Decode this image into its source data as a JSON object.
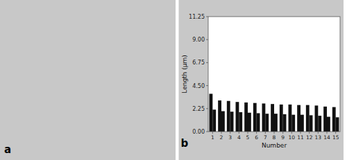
{
  "chart_data": {
    "type": "bar",
    "xlabel": "Number",
    "ylabel": "Length (μm)",
    "categories": [
      "1",
      "2",
      "3",
      "4",
      "5",
      "6",
      "7",
      "8",
      "9",
      "10",
      "11",
      "12",
      "13",
      "14",
      "15"
    ],
    "series": [
      {
        "color": "#111111",
        "values": [
          3.7,
          3.05,
          3.0,
          2.9,
          2.85,
          2.8,
          2.75,
          2.7,
          2.65,
          2.65,
          2.6,
          2.6,
          2.55,
          2.45,
          2.4
        ]
      },
      {
        "color": "#111111",
        "values": [
          2.15,
          2.0,
          1.95,
          1.9,
          1.85,
          1.8,
          1.75,
          1.75,
          1.7,
          1.65,
          1.65,
          1.6,
          1.55,
          1.45,
          1.4
        ]
      }
    ],
    "ylim": [
      0,
      11.25
    ],
    "yticks": [
      {
        "value": 0,
        "label": "0.00"
      },
      2.25,
      {
        "value": 4.5,
        "label": "4.50"
      },
      6.75,
      {
        "value": 9,
        "label": "9.00"
      },
      11.25
    ],
    "grid": false,
    "annotations": [
      "a",
      "b"
    ]
  }
}
